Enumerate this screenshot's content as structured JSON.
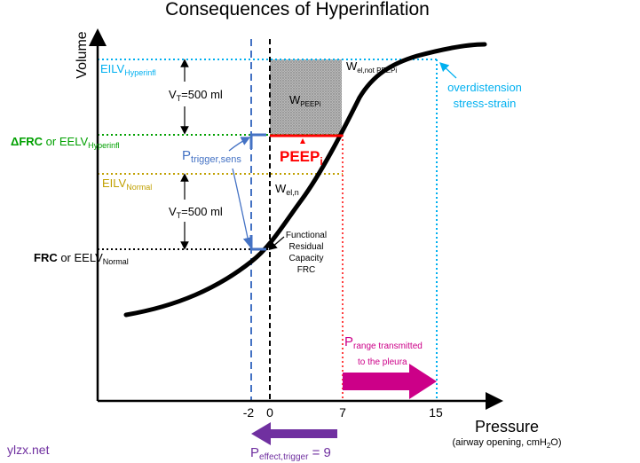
{
  "title": "Consequences of Hyperinflation",
  "axes": {
    "y_label": "Volume",
    "x_label": "Pressure",
    "x_sublabel_prefix": "(airway opening, cmH",
    "x_sublabel_sub": "2",
    "x_sublabel_suffix": "O)",
    "x_ticks": [
      "-2",
      "0",
      "7",
      "15"
    ]
  },
  "volume_levels": {
    "eilv_hyper": {
      "main": "EILV",
      "sub": "Hyperinfl"
    },
    "dfrc_prefix": "ΔFRC",
    "or_word": " or ",
    "eelv_hyper": {
      "main": "EELV",
      "sub": "Hyperinfl"
    },
    "eilv_normal": {
      "main": "EILV",
      "sub": "Normal"
    },
    "frc_prefix": "FRC",
    "eelv_normal": {
      "main": "EELV",
      "sub": "Normal"
    }
  },
  "tidal_volume": {
    "prefix": "V",
    "sub": "T",
    "suffix": "=500 ml"
  },
  "annotations": {
    "w_peepi": {
      "main": "W",
      "sub": "PEEPi"
    },
    "w_el_not_peepi": {
      "main": "W",
      "sub": "el,not PEEPi"
    },
    "w_el_n": {
      "main": "W",
      "sub": "el,n"
    },
    "peepi": {
      "main": "PEEP",
      "sub": "i"
    },
    "p_trigger": {
      "main": "P",
      "sub": "trigger,sens"
    },
    "frc_note": [
      "Functional",
      "Residual",
      "Capacity",
      "FRC"
    ],
    "overdistension": [
      "overdistension",
      "stress-strain"
    ],
    "p_range": {
      "main": "P",
      "sub": "range transmitted",
      "line2": "to the pleura"
    },
    "p_effect": {
      "main": "P",
      "sub": "effect,trigger",
      "suffix": " = 9"
    }
  },
  "watermark": "ylzx.net",
  "colors": {
    "eilv_hyper": "#00b0f0",
    "eelv_hyper": "#00a000",
    "eilv_normal": "#c0a000",
    "trigger_blue": "#4472c4",
    "peepi_red": "#ff0000",
    "magenta": "#cc0088",
    "purple": "#7030a0",
    "watermark_purple": "#7030a0"
  }
}
